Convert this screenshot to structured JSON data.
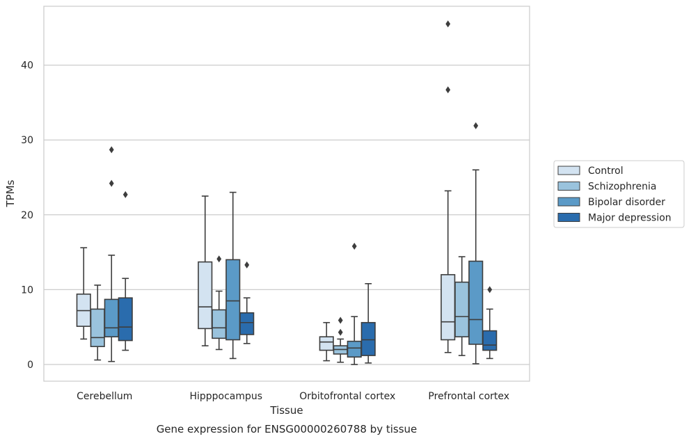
{
  "chart_data": {
    "type": "box",
    "title": "",
    "caption": "Gene expression for ENSG00000260788 by tissue",
    "xlabel": "Tissue",
    "ylabel": "TPMs",
    "ylim": [
      -2.2,
      48
    ],
    "yticks": [
      0,
      10,
      20,
      30,
      40
    ],
    "grid": "horizontal",
    "legend_position": "right",
    "categories": [
      "Cerebellum",
      "Hipppocampus",
      "Orbitofrontal cortex",
      "Prefrontal cortex"
    ],
    "series": [
      {
        "name": "Control",
        "color": "#d3e3f1",
        "boxes": [
          {
            "whislo": 3.4,
            "q1": 5.1,
            "median": 7.2,
            "q3": 9.4,
            "whishi": 15.6,
            "fliers": []
          },
          {
            "whislo": 2.5,
            "q1": 4.8,
            "median": 7.7,
            "q3": 13.7,
            "whishi": 22.5,
            "fliers": []
          },
          {
            "whislo": 0.5,
            "q1": 1.9,
            "median": 3.0,
            "q3": 3.7,
            "whishi": 5.6,
            "fliers": []
          },
          {
            "whislo": 1.6,
            "q1": 3.3,
            "median": 5.7,
            "q3": 12.0,
            "whishi": 23.2,
            "fliers": [
              36.7,
              45.5
            ]
          }
        ]
      },
      {
        "name": "Schizophrenia",
        "color": "#9ac3dd",
        "boxes": [
          {
            "whislo": 0.6,
            "q1": 2.4,
            "median": 3.6,
            "q3": 7.4,
            "whishi": 10.6,
            "fliers": []
          },
          {
            "whislo": 2.0,
            "q1": 3.5,
            "median": 4.9,
            "q3": 7.3,
            "whishi": 9.8,
            "fliers": [
              14.1
            ]
          },
          {
            "whislo": 0.3,
            "q1": 1.4,
            "median": 2.0,
            "q3": 2.5,
            "whishi": 3.4,
            "fliers": [
              4.3,
              5.9
            ]
          },
          {
            "whislo": 1.2,
            "q1": 3.7,
            "median": 6.4,
            "q3": 11.0,
            "whishi": 14.4,
            "fliers": []
          }
        ]
      },
      {
        "name": "Bipolar disorder",
        "color": "#5b9ac7",
        "boxes": [
          {
            "whislo": 0.4,
            "q1": 3.7,
            "median": 4.9,
            "q3": 8.7,
            "whishi": 14.6,
            "fliers": [
              24.2,
              28.7
            ]
          },
          {
            "whislo": 0.8,
            "q1": 3.3,
            "median": 8.5,
            "q3": 14.0,
            "whishi": 23.0,
            "fliers": []
          },
          {
            "whislo": 0.0,
            "q1": 1.0,
            "median": 2.2,
            "q3": 3.1,
            "whishi": 6.4,
            "fliers": [
              15.8
            ]
          },
          {
            "whislo": 0.1,
            "q1": 2.7,
            "median": 6.0,
            "q3": 13.8,
            "whishi": 26.0,
            "fliers": [
              31.9
            ]
          }
        ]
      },
      {
        "name": "Major depression",
        "color": "#2a6cad",
        "boxes": [
          {
            "whislo": 1.9,
            "q1": 3.2,
            "median": 5.0,
            "q3": 8.9,
            "whishi": 11.5,
            "fliers": [
              22.7
            ]
          },
          {
            "whislo": 2.8,
            "q1": 4.0,
            "median": 5.6,
            "q3": 6.9,
            "whishi": 8.9,
            "fliers": [
              13.3
            ]
          },
          {
            "whislo": 0.2,
            "q1": 1.2,
            "median": 3.3,
            "q3": 5.6,
            "whishi": 10.8,
            "fliers": []
          },
          {
            "whislo": 0.8,
            "q1": 1.9,
            "median": 2.6,
            "q3": 4.5,
            "whishi": 7.4,
            "fliers": [
              10.0
            ]
          }
        ]
      }
    ]
  }
}
